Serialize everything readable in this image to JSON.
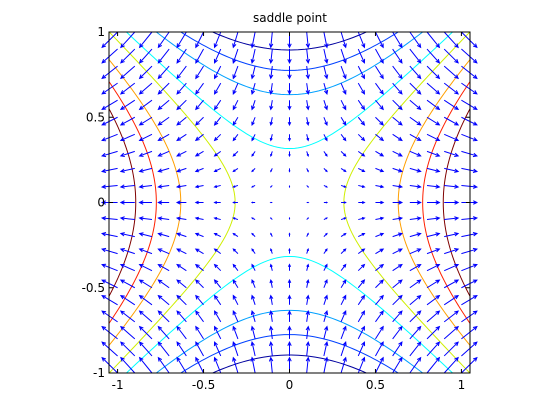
{
  "chart_data": {
    "type": "contour",
    "title": "saddle point",
    "xlabel": "",
    "ylabel": "",
    "xlim": [
      -1.05,
      1.05
    ],
    "ylim": [
      -1,
      1
    ],
    "xticks": [
      -1,
      -0.5,
      0,
      0.5,
      1
    ],
    "xtick_labels": [
      "-1",
      "-0.5",
      "0",
      "0.5",
      "1"
    ],
    "yticks": [
      -1,
      -0.5,
      0,
      0.5,
      1
    ],
    "ytick_labels": [
      "-1",
      "-0.5",
      "0",
      "0.5",
      "1"
    ],
    "grid": false,
    "function": "z = x^2 - y^2",
    "contour_levels": [
      {
        "level": 0.8,
        "color": "#7f0000"
      },
      {
        "level": 0.6,
        "color": "#ff2000"
      },
      {
        "level": 0.4,
        "color": "#ff9f00"
      },
      {
        "level": 0.1,
        "color": "#cfef00"
      },
      {
        "level": -0.1,
        "color": "#00ffff"
      },
      {
        "level": -0.4,
        "color": "#00a0ff"
      },
      {
        "level": -0.6,
        "color": "#0040ff"
      },
      {
        "level": -0.8,
        "color": "#00009f"
      }
    ],
    "quiver": {
      "grid_step": 0.1,
      "field": "gradient",
      "color": "#0000ff"
    }
  }
}
